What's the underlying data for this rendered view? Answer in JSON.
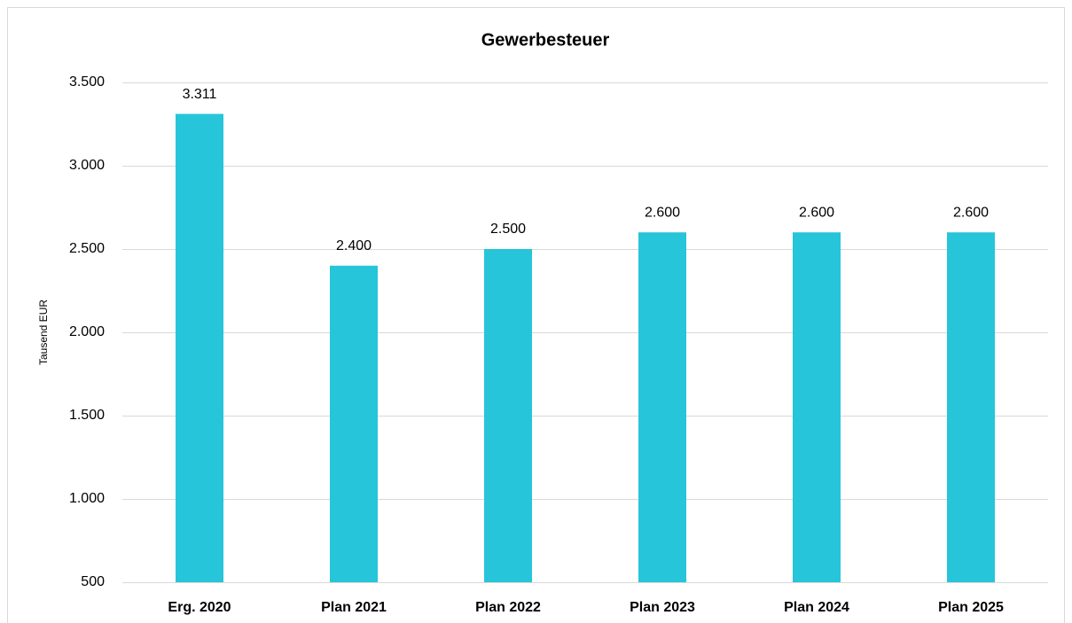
{
  "chart_data": {
    "type": "bar",
    "title": "Gewerbesteuer",
    "y_label": "Tausend EUR",
    "categories": [
      "Erg. 2020",
      "Plan 2021",
      "Plan 2022",
      "Plan 2023",
      "Plan 2024",
      "Plan 2025"
    ],
    "values": [
      3311,
      2400,
      2500,
      2600,
      2600,
      2600
    ],
    "value_labels": [
      "3.311",
      "2.400",
      "2.500",
      "2.600",
      "2.600",
      "2.600"
    ],
    "color": "#26c5d9",
    "ylim": [
      500,
      3500
    ],
    "yticks": [
      500,
      {
        "value": 1000,
        "label": "1.000"
      },
      {
        "value": 1500,
        "label": "1.500"
      },
      {
        "value": 2000,
        "label": "2.000"
      },
      {
        "value": 2500,
        "label": "2.500"
      },
      {
        "value": 3000,
        "label": "3.000"
      },
      {
        "value": 3500,
        "label": "3.500"
      }
    ],
    "grid": true
  }
}
